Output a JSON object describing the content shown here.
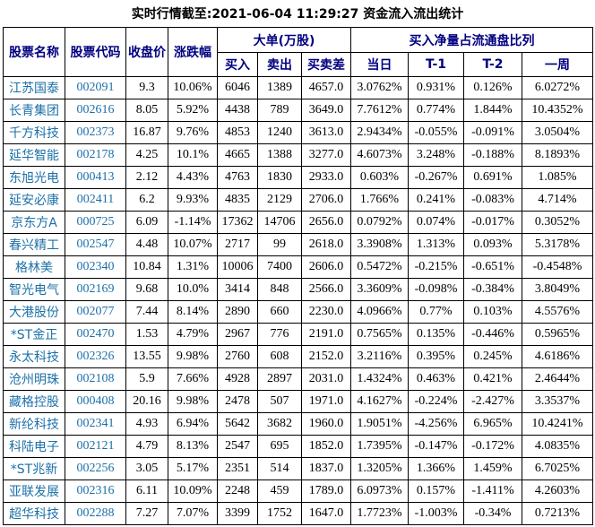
{
  "title": "实时行情截至:2021-06-04 11:29:27 资金流入流出统计",
  "colors": {
    "background": "#FFFFFF",
    "border": "#000000",
    "header_text": "#000080",
    "stock_link_text": "#1C70A8",
    "data_text": "#000000"
  },
  "table": {
    "headers": {
      "stock_name": "股票名称",
      "stock_code": "股票代码",
      "close_price": "收盘价",
      "change_pct": "涨跌幅",
      "large_order_group": "大单(万股)",
      "buy": "买入",
      "sell": "卖出",
      "buy_sell_diff": "买卖差",
      "net_buy_group": "买入净量占流通盘比列",
      "today": "当日",
      "t1": "T-1",
      "t2": "T-2",
      "week": "一周"
    }
  },
  "chart_data": {
    "type": "table",
    "title": "实时行情截至:2021-06-04 11:29:27 资金流入流出统计",
    "columns": [
      "股票名称",
      "股票代码",
      "收盘价",
      "涨跌幅",
      "大单(万股)-买入",
      "大单(万股)-卖出",
      "大单(万股)-买卖差",
      "买入净量占流通盘比列-当日",
      "买入净量占流通盘比列-T-1",
      "买入净量占流通盘比列-T-2",
      "买入净量占流通盘比列-一周"
    ],
    "rows": [
      [
        "江苏国泰",
        "002091",
        "9.3",
        "10.06%",
        "6046",
        "1389",
        "4657.0",
        "3.0762%",
        "0.931%",
        "0.126%",
        "6.0272%"
      ],
      [
        "长青集团",
        "002616",
        "8.05",
        "5.92%",
        "4438",
        "789",
        "3649.0",
        "7.7612%",
        "0.774%",
        "1.844%",
        "10.4352%"
      ],
      [
        "千方科技",
        "002373",
        "16.87",
        "9.76%",
        "4853",
        "1240",
        "3613.0",
        "2.9434%",
        "-0.055%",
        "-0.091%",
        "3.0504%"
      ],
      [
        "延华智能",
        "002178",
        "4.25",
        "10.1%",
        "4665",
        "1388",
        "3277.0",
        "4.6073%",
        "3.248%",
        "-0.188%",
        "8.1893%"
      ],
      [
        "东旭光电",
        "000413",
        "2.12",
        "4.43%",
        "4763",
        "1830",
        "2933.0",
        "0.603%",
        "-0.267%",
        "0.691%",
        "1.085%"
      ],
      [
        "延安必康",
        "002411",
        "6.2",
        "9.93%",
        "4835",
        "2129",
        "2706.0",
        "1.766%",
        "0.241%",
        "-0.083%",
        "4.714%"
      ],
      [
        "京东方A",
        "000725",
        "6.09",
        "-1.14%",
        "17362",
        "14706",
        "2656.0",
        "0.0792%",
        "0.074%",
        "-0.017%",
        "0.3052%"
      ],
      [
        "春兴精工",
        "002547",
        "4.48",
        "10.07%",
        "2717",
        "99",
        "2618.0",
        "3.3908%",
        "1.313%",
        "0.093%",
        "5.3178%"
      ],
      [
        "格林美",
        "002340",
        "10.84",
        "1.31%",
        "10006",
        "7400",
        "2606.0",
        "0.5472%",
        "-0.215%",
        "-0.651%",
        "-0.4548%"
      ],
      [
        "智光电气",
        "002169",
        "9.68",
        "10.0%",
        "3414",
        "848",
        "2566.0",
        "3.3609%",
        "-0.098%",
        "-0.384%",
        "3.8049%"
      ],
      [
        "大港股份",
        "002077",
        "7.44",
        "8.14%",
        "2890",
        "660",
        "2230.0",
        "4.0966%",
        "0.77%",
        "0.103%",
        "4.5576%"
      ],
      [
        "*ST金正",
        "002470",
        "1.53",
        "4.79%",
        "2967",
        "776",
        "2191.0",
        "0.7565%",
        "0.135%",
        "-0.446%",
        "0.5965%"
      ],
      [
        "永太科技",
        "002326",
        "13.55",
        "9.98%",
        "2760",
        "608",
        "2152.0",
        "3.2116%",
        "0.395%",
        "0.245%",
        "4.6186%"
      ],
      [
        "沧州明珠",
        "002108",
        "5.9",
        "7.66%",
        "4928",
        "2897",
        "2031.0",
        "1.4324%",
        "0.463%",
        "0.421%",
        "2.4644%"
      ],
      [
        "藏格控股",
        "000408",
        "20.16",
        "9.98%",
        "2478",
        "507",
        "1971.0",
        "4.1627%",
        "-0.224%",
        "-2.427%",
        "3.3537%"
      ],
      [
        "新纶科技",
        "002341",
        "4.93",
        "6.94%",
        "5642",
        "3682",
        "1960.0",
        "1.9051%",
        "-4.256%",
        "6.965%",
        "10.4241%"
      ],
      [
        "科陆电子",
        "002121",
        "4.79",
        "8.13%",
        "2547",
        "695",
        "1852.0",
        "1.7395%",
        "-0.147%",
        "-0.172%",
        "4.0835%"
      ],
      [
        "*ST兆新",
        "002256",
        "3.05",
        "5.17%",
        "2351",
        "514",
        "1837.0",
        "1.3205%",
        "1.366%",
        "1.459%",
        "6.7025%"
      ],
      [
        "亚联发展",
        "002316",
        "6.11",
        "10.09%",
        "2248",
        "459",
        "1789.0",
        "6.0973%",
        "0.157%",
        "-1.411%",
        "4.2603%"
      ],
      [
        "超华科技",
        "002288",
        "7.27",
        "7.07%",
        "3399",
        "1752",
        "1647.0",
        "1.7723%",
        "-1.003%",
        "-0.34%",
        "0.7213%"
      ]
    ]
  }
}
